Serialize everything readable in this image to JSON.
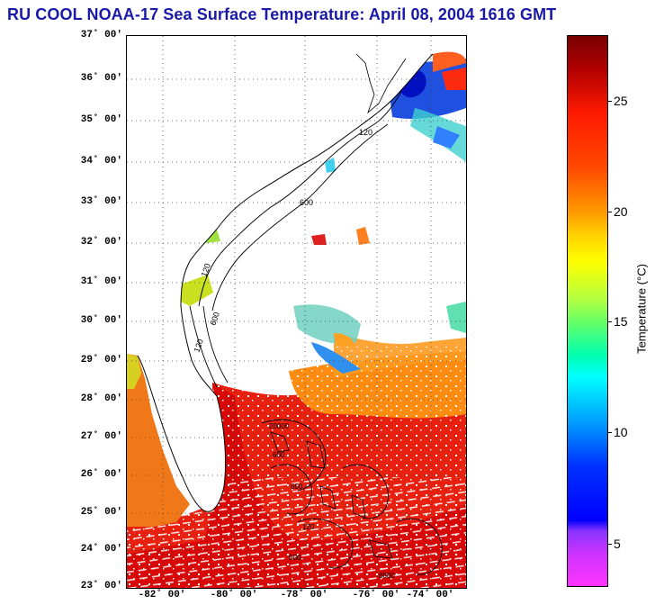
{
  "title": "RU COOL  NOAA-17  Sea Surface Temperature:  April 08, 2004 1616 GMT",
  "map": {
    "latitude_labels": [
      "37˚ 00'",
      "36˚ 00'",
      "35˚ 00'",
      "34˚ 00'",
      "33˚ 00'",
      "32˚ 00'",
      "31˚ 00'",
      "30˚ 00'",
      "29˚ 00'",
      "28˚ 00'",
      "27˚ 00'",
      "26˚ 00'",
      "25˚ 00'",
      "24˚ 00'",
      "23˚ 00'"
    ],
    "longitude_labels": [
      "-82˚ 00'",
      "-80˚ 00'",
      "-78˚ 00'",
      "-76˚ 00'",
      "-74˚ 00'"
    ],
    "contour_labels": [
      "120",
      "600",
      "120",
      "600",
      "120",
      "20000",
      "600",
      "600",
      "120",
      "600",
      "6000"
    ]
  },
  "colorbar": {
    "label": "Temperature (°C)",
    "ticks": [
      "25",
      "20",
      "15",
      "10",
      "5"
    ],
    "colors": {
      "top": "#7a0000",
      "red": "#ff1a00",
      "orange": "#ff9900",
      "yellow": "#ffff00",
      "green": "#66ff66",
      "cyan": "#00ffff",
      "blue": "#0033ff",
      "purple": "#8833ff",
      "magenta": "#ff33ff"
    }
  }
}
